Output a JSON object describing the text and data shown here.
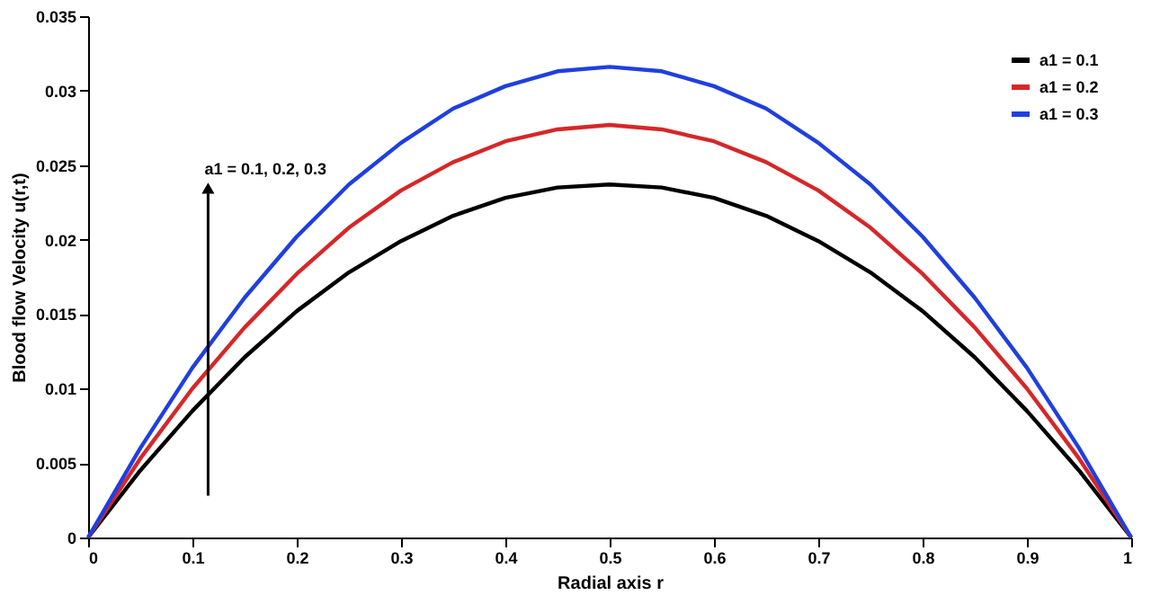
{
  "chart_data": {
    "type": "line",
    "xlabel": "Radial axis r",
    "ylabel": "Blood flow Velocity u(r,t)",
    "x": [
      0,
      0.05,
      0.1,
      0.15,
      0.2,
      0.25,
      0.3,
      0.35,
      0.4,
      0.45,
      0.5,
      0.55,
      0.6,
      0.65,
      0.7,
      0.75,
      0.8,
      0.85,
      0.9,
      0.95,
      1
    ],
    "series": [
      {
        "name": "a1 = 0.1",
        "color": "#000000",
        "values": [
          0,
          0.0045,
          0.0085,
          0.0121,
          0.0152,
          0.0178,
          0.0199,
          0.0216,
          0.0228,
          0.0235,
          0.0237,
          0.0235,
          0.0228,
          0.0216,
          0.0199,
          0.0178,
          0.0152,
          0.0121,
          0.0085,
          0.0045,
          0
        ]
      },
      {
        "name": "a1 = 0.2",
        "color": "#d62728",
        "values": [
          0,
          0.0053,
          0.01,
          0.0141,
          0.0177,
          0.0208,
          0.0233,
          0.0252,
          0.0266,
          0.0274,
          0.0277,
          0.0274,
          0.0266,
          0.0252,
          0.0233,
          0.0208,
          0.0177,
          0.0141,
          0.01,
          0.0053,
          0
        ]
      },
      {
        "name": "a1 = 0.3",
        "color": "#1f3fe0",
        "values": [
          0,
          0.006,
          0.0114,
          0.0161,
          0.0202,
          0.0237,
          0.0265,
          0.0288,
          0.0303,
          0.0313,
          0.0316,
          0.0313,
          0.0303,
          0.0288,
          0.0265,
          0.0237,
          0.0202,
          0.0161,
          0.0114,
          0.006,
          0
        ]
      }
    ],
    "xlim": [
      0,
      1
    ],
    "xticks": [
      0,
      0.1,
      0.2,
      0.3,
      0.4,
      0.5,
      0.6,
      0.7,
      0.8,
      0.9,
      1
    ],
    "ylim": [
      0,
      0.035
    ],
    "yticks": [
      0,
      0.005,
      0.01,
      0.015,
      0.02,
      0.025,
      0.03,
      0.035
    ],
    "annotations": [
      "a1 = 0.1, 0.2, 0.3"
    ],
    "legend": "top right",
    "grid": false,
    "marker": "none",
    "line_style": "solid"
  }
}
